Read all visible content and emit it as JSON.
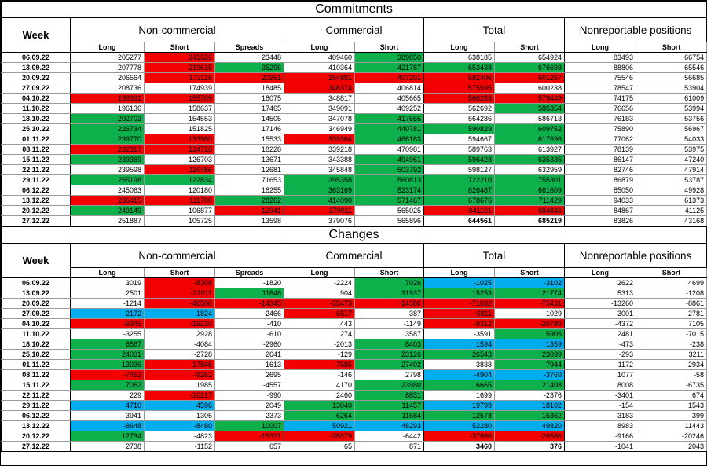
{
  "cell_colors": {
    "w": "#ffffff",
    "g": "#0db04b",
    "r": "#f30000",
    "b": "#00aeef"
  },
  "columns": {
    "week": "Week",
    "groups": [
      {
        "label": "Non-commercial",
        "span": 3
      },
      {
        "label": "Commercial",
        "span": 2
      },
      {
        "label": "Total",
        "span": 2
      },
      {
        "label": "Nonreportable positions",
        "span": 2
      }
    ],
    "subheaders": [
      "Long",
      "Short",
      "Spreads",
      "Long",
      "Short",
      "Long",
      "Short",
      "Long",
      "Short"
    ]
  },
  "commitments": {
    "title": "Commitments",
    "rows": [
      {
        "date": "06.09.22",
        "values": [
          "205277",
          "241626",
          "23448",
          "409460",
          "389850",
          "638185",
          "654924",
          "83493",
          "66754"
        ],
        "colors": "wrwwgwwww"
      },
      {
        "date": "13.09.22",
        "values": [
          "207778",
          "219615",
          "35296",
          "410364",
          "421787",
          "653438",
          "676698",
          "88806",
          "65546"
        ],
        "colors": "wrgwgggww"
      },
      {
        "date": "20.09.22",
        "values": [
          "206564",
          "173115",
          "20951",
          "354891",
          "407201",
          "582406",
          "601267",
          "75546",
          "56685"
        ],
        "colors": "wrrrrrrww"
      },
      {
        "date": "27.09.22",
        "values": [
          "208736",
          "174939",
          "18485",
          "348374",
          "406814",
          "575595",
          "600238",
          "78547",
          "53904"
        ],
        "colors": "wwwrwrwww"
      },
      {
        "date": "04.10.22",
        "values": [
          "199391",
          "155709",
          "18075",
          "348817",
          "405665",
          "566283",
          "579449",
          "74175",
          "61009"
        ],
        "colors": "rrwwwrrww"
      },
      {
        "date": "11.10.22",
        "values": [
          "196136",
          "158637",
          "17465",
          "349091",
          "409252",
          "562692",
          "585354",
          "76656",
          "53994"
        ],
        "colors": "wwwwwwgww"
      },
      {
        "date": "18.10.22",
        "values": [
          "202703",
          "154553",
          "14505",
          "347078",
          "417655",
          "564286",
          "586713",
          "76183",
          "53756"
        ],
        "colors": "gwwwgwwww"
      },
      {
        "date": "25.10.22",
        "values": [
          "226734",
          "151825",
          "17146",
          "346949",
          "440781",
          "590829",
          "609752",
          "75890",
          "56967"
        ],
        "colors": "gwwwgggww"
      },
      {
        "date": "01.11.22",
        "values": [
          "239770",
          "133980",
          "15533",
          "339364",
          "468183",
          "594667",
          "617696",
          "77062",
          "54033"
        ],
        "colors": "grwrgwgww"
      },
      {
        "date": "08.11.22",
        "values": [
          "232317",
          "124718",
          "18228",
          "339218",
          "470981",
          "589763",
          "613927",
          "78139",
          "53975"
        ],
        "colors": "rrwwwwwww"
      },
      {
        "date": "15.11.22",
        "values": [
          "239369",
          "126703",
          "13671",
          "343388",
          "494961",
          "596428",
          "635335",
          "86147",
          "47240"
        ],
        "colors": "gwwwgggww"
      },
      {
        "date": "22.11.22",
        "values": [
          "239598",
          "116486",
          "12681",
          "345848",
          "503792",
          "598127",
          "632959",
          "82746",
          "47914"
        ],
        "colors": "wrwwgwwww"
      },
      {
        "date": "29.11.22",
        "values": [
          "255198",
          "122834",
          "71653",
          "395358",
          "560813",
          "722210",
          "755301",
          "86879",
          "53787"
        ],
        "colors": "ggwggggww"
      },
      {
        "date": "06.12.22",
        "values": [
          "245063",
          "120180",
          "18255",
          "363169",
          "523174",
          "626487",
          "661609",
          "85050",
          "49928"
        ],
        "colors": "wwwggggww"
      },
      {
        "date": "13.12.22",
        "values": [
          "236415",
          "111700",
          "28262",
          "414090",
          "571467",
          "678676",
          "711429",
          "94033",
          "61373"
        ],
        "colors": "rrgggggww"
      },
      {
        "date": "20.12.22",
        "values": [
          "249149",
          "106877",
          "12941",
          "379011",
          "565025",
          "641101",
          "684843",
          "84867",
          "41125"
        ],
        "colors": "gwrrwrrww"
      },
      {
        "date": "27.12.22",
        "values": [
          "251887",
          "105725",
          "13598",
          "379076",
          "565896",
          "644561",
          "685219",
          "83826",
          "43168"
        ],
        "colors": "wwwwwwwww",
        "bold": [
          5,
          6
        ]
      }
    ]
  },
  "changes": {
    "title": "Changes",
    "rows": [
      {
        "date": "06.09.22",
        "values": [
          "3019",
          "-8308",
          "-1820",
          "-2224",
          "7026",
          "-1025",
          "-3102",
          "2622",
          "4699"
        ],
        "colors": "wrwwgbbww"
      },
      {
        "date": "13.09.22",
        "values": [
          "2501",
          "-22011",
          "11848",
          "904",
          "31937",
          "15253",
          "21774",
          "5313",
          "-1208"
        ],
        "colors": "wrgwgggww"
      },
      {
        "date": "20.09.22",
        "values": [
          "-1214",
          "-46500",
          "-14345",
          "-55473",
          "-14586",
          "-71032",
          "-75431",
          "-13260",
          "-8861"
        ],
        "colors": "wrrrrrrww"
      },
      {
        "date": "27.09.22",
        "values": [
          "2172",
          "1824",
          "-2466",
          "-6517",
          "-387",
          "-6811",
          "-1029",
          "3001",
          "-2781"
        ],
        "colors": "bbwrwrwww"
      },
      {
        "date": "04.10.22",
        "values": [
          "-9345",
          "-19230",
          "-410",
          "443",
          "-1149",
          "-9312",
          "-20789",
          "-4372",
          "7105"
        ],
        "colors": "rrwwwrrww"
      },
      {
        "date": "11.10.22",
        "values": [
          "-3255",
          "2928",
          "-610",
          "274",
          "3587",
          "-3591",
          "5905",
          "2481",
          "-7015"
        ],
        "colors": "wwwwwwgww"
      },
      {
        "date": "18.10.22",
        "values": [
          "6567",
          "-4084",
          "-2960",
          "-2013",
          "8403",
          "1594",
          "1359",
          "-473",
          "-238"
        ],
        "colors": "gwwwgbbww"
      },
      {
        "date": "25.10.22",
        "values": [
          "24031",
          "-2728",
          "2641",
          "-129",
          "23126",
          "26543",
          "23039",
          "-293",
          "3211"
        ],
        "colors": "gwwwgggww"
      },
      {
        "date": "01.11.22",
        "values": [
          "13036",
          "-17845",
          "-1613",
          "-7585",
          "27402",
          "3838",
          "7944",
          "1172",
          "-2934"
        ],
        "colors": "grwrgwgww"
      },
      {
        "date": "08.11.22",
        "values": [
          "-7453",
          "-9262",
          "2695",
          "-146",
          "2798",
          "-4904",
          "-3769",
          "1077",
          "-58"
        ],
        "colors": "rrwwwbbww"
      },
      {
        "date": "15.11.22",
        "values": [
          "7052",
          "1985",
          "-4557",
          "4170",
          "23980",
          "6665",
          "21408",
          "8008",
          "-6735"
        ],
        "colors": "gwwwgggww"
      },
      {
        "date": "22.11.22",
        "values": [
          "229",
          "-10217",
          "-990",
          "2460",
          "8831",
          "1699",
          "-2376",
          "-3401",
          "674"
        ],
        "colors": "wrwwgwwww"
      },
      {
        "date": "29.11.22",
        "values": [
          "4710",
          "4596",
          "2049",
          "13040",
          "11457",
          "19799",
          "18102",
          "-154",
          "1543"
        ],
        "colors": "bbwggbbww"
      },
      {
        "date": "06.12.22",
        "values": [
          "3941",
          "1305",
          "2373",
          "6264",
          "11684",
          "12578",
          "15362",
          "3183",
          "399"
        ],
        "colors": "wwwggggww"
      },
      {
        "date": "13.12.22",
        "values": [
          "-8648",
          "-8480",
          "10007",
          "50921",
          "48293",
          "52280",
          "49820",
          "8983",
          "11443"
        ],
        "colors": "bbgbbbbww"
      },
      {
        "date": "20.12.22",
        "values": [
          "12734",
          "-4823",
          "-15321",
          "-35079",
          "-6442",
          "-37666",
          "-26586",
          "-9166",
          "-20246"
        ],
        "colors": "gwrrwrrww"
      },
      {
        "date": "27.12.22",
        "values": [
          "2738",
          "-1152",
          "657",
          "65",
          "871",
          "3460",
          "376",
          "-1041",
          "2043"
        ],
        "colors": "wwwwwwwww",
        "bold": [
          5,
          6
        ]
      }
    ]
  }
}
